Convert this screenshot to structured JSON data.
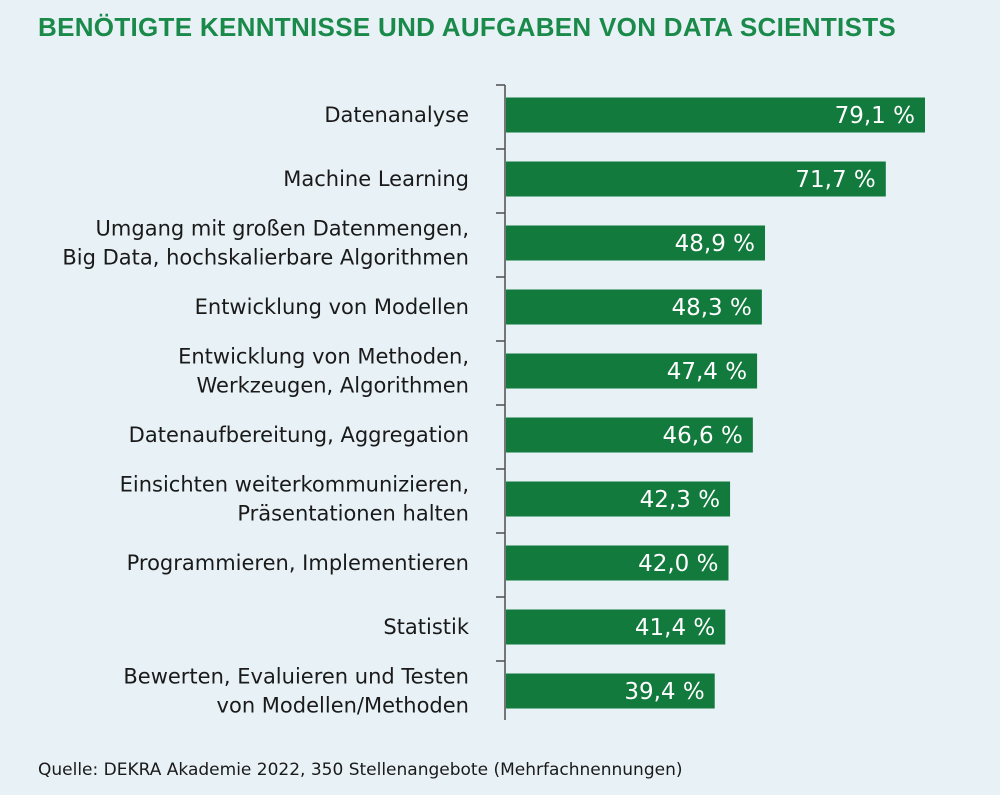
{
  "colors": {
    "background": "#e8f1f6",
    "bar": "#117a3c",
    "title": "#1a8a4a",
    "axis": "#4d4d4d"
  },
  "chart_data": {
    "type": "bar",
    "orientation": "horizontal",
    "title": "BENÖTIGTE KENNTNISSE UND AUFGABEN VON DATA SCIENTISTS",
    "categories": [
      "Datenanalyse",
      "Machine Learning",
      "Umgang mit großen Datenmengen,\nBig Data, hochskalierbare Algorithmen",
      "Entwicklung von Modellen",
      "Entwicklung von Methoden,\nWerkzeugen, Algorithmen",
      "Datenaufbereitung, Aggregation",
      "Einsichten weiterkommunizieren,\nPräsentationen halten",
      "Programmieren, Implementieren",
      "Statistik",
      "Bewerten, Evaluieren und Testen\nvon Modellen/Methoden"
    ],
    "values": [
      79.1,
      71.7,
      48.9,
      48.3,
      47.4,
      46.6,
      42.3,
      42.0,
      41.4,
      39.4
    ],
    "value_labels": [
      "79,1 %",
      "71,7 %",
      "48,9 %",
      "48,3 %",
      "47,4 %",
      "46,6 %",
      "42,3 %",
      "42,0 %",
      "41,4 %",
      "39,4 %"
    ],
    "unit": "%",
    "xlim": [
      0,
      80
    ],
    "grid": false,
    "legend": "none"
  },
  "source": "Quelle: DEKRA Akademie 2022, 350 Stellenangebote (Mehrfachnennungen)"
}
